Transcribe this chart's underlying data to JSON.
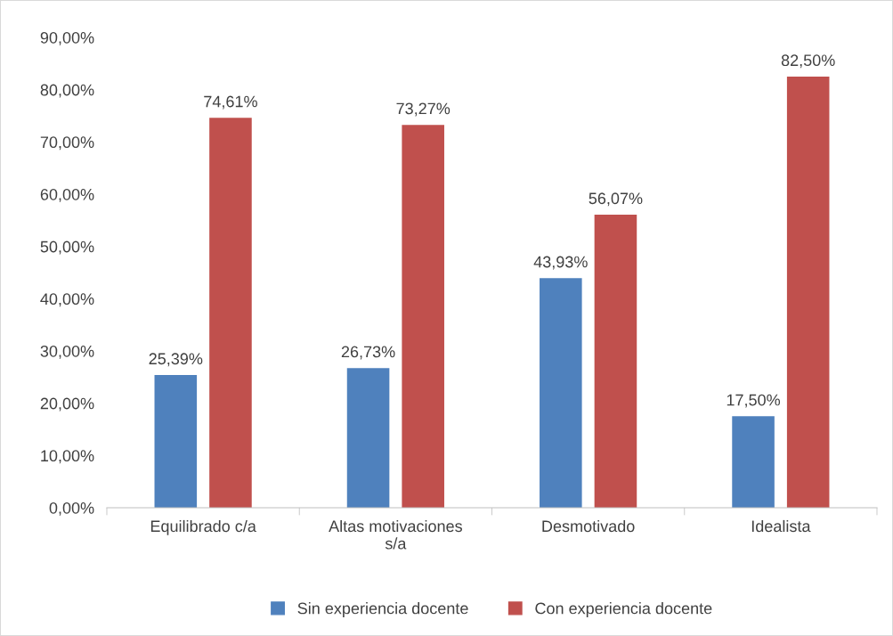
{
  "chart_data": {
    "type": "bar",
    "categories": [
      "Equilibrado c/a",
      "Altas motivaciones\ns/a",
      "Desmotivado",
      "Idealista"
    ],
    "series": [
      {
        "name": "Sin experiencia docente",
        "color": "#4f81bd",
        "values": [
          25.39,
          26.73,
          43.93,
          17.5
        ],
        "value_labels": [
          "25,39%",
          "26,73%",
          "43,93%",
          "17,50%"
        ]
      },
      {
        "name": "Con experiencia docente",
        "color": "#c0504d",
        "values": [
          74.61,
          73.27,
          56.07,
          82.5
        ],
        "value_labels": [
          "74,61%",
          "73,27%",
          "56,07%",
          "82,50%"
        ]
      }
    ],
    "ylim": [
      0,
      90
    ],
    "yticks": [
      {
        "value": 0,
        "label": "0,00%"
      },
      {
        "value": 10,
        "label": "10,00%"
      },
      {
        "value": 20,
        "label": "20,00%"
      },
      {
        "value": 30,
        "label": "30,00%"
      },
      {
        "value": 40,
        "label": "40,00%"
      },
      {
        "value": 50,
        "label": "50,00%"
      },
      {
        "value": 60,
        "label": "60,00%"
      },
      {
        "value": 70,
        "label": "70,00%"
      },
      {
        "value": 80,
        "label": "80,00%"
      },
      {
        "value": 90,
        "label": "90,00%"
      }
    ],
    "grid": false,
    "legend": "bottom"
  }
}
